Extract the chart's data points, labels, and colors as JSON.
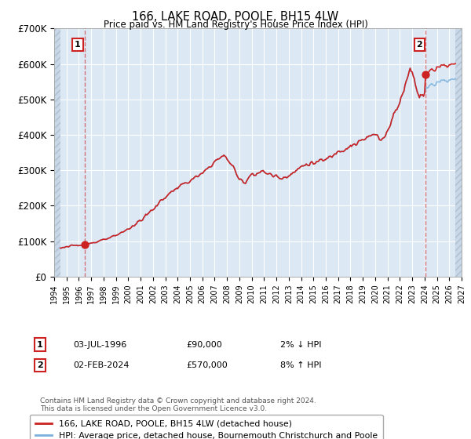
{
  "title": "166, LAKE ROAD, POOLE, BH15 4LW",
  "subtitle": "Price paid vs. HM Land Registry's House Price Index (HPI)",
  "legend_line1": "166, LAKE ROAD, POOLE, BH15 4LW (detached house)",
  "legend_line2": "HPI: Average price, detached house, Bournemouth Christchurch and Poole",
  "annotation1_date": "03-JUL-1996",
  "annotation1_price": "£90,000",
  "annotation1_hpi": "2% ↓ HPI",
  "annotation2_date": "02-FEB-2024",
  "annotation2_price": "£570,000",
  "annotation2_hpi": "8% ↑ HPI",
  "footnote": "Contains HM Land Registry data © Crown copyright and database right 2024.\nThis data is licensed under the Open Government Licence v3.0.",
  "xmin": 1994.0,
  "xmax": 2027.0,
  "ymin": 0,
  "ymax": 700000,
  "yticks": [
    0,
    100000,
    200000,
    300000,
    400000,
    500000,
    600000,
    700000
  ],
  "ytick_labels": [
    "£0",
    "£100K",
    "£200K",
    "£300K",
    "£400K",
    "£500K",
    "£600K",
    "£700K"
  ],
  "plot_bg_color": "#dce9f5",
  "hatch_bg_color": "#c8d8e8",
  "grid_color": "#ffffff",
  "line_color_red": "#cc2222",
  "line_color_blue": "#7ab0dd",
  "sale1_x": 1996.5,
  "sale1_y": 90000,
  "sale2_x": 2024.09,
  "sale2_y": 570000,
  "hpi_data_start": 1994.25,
  "hpi_data_end": 2026.75
}
